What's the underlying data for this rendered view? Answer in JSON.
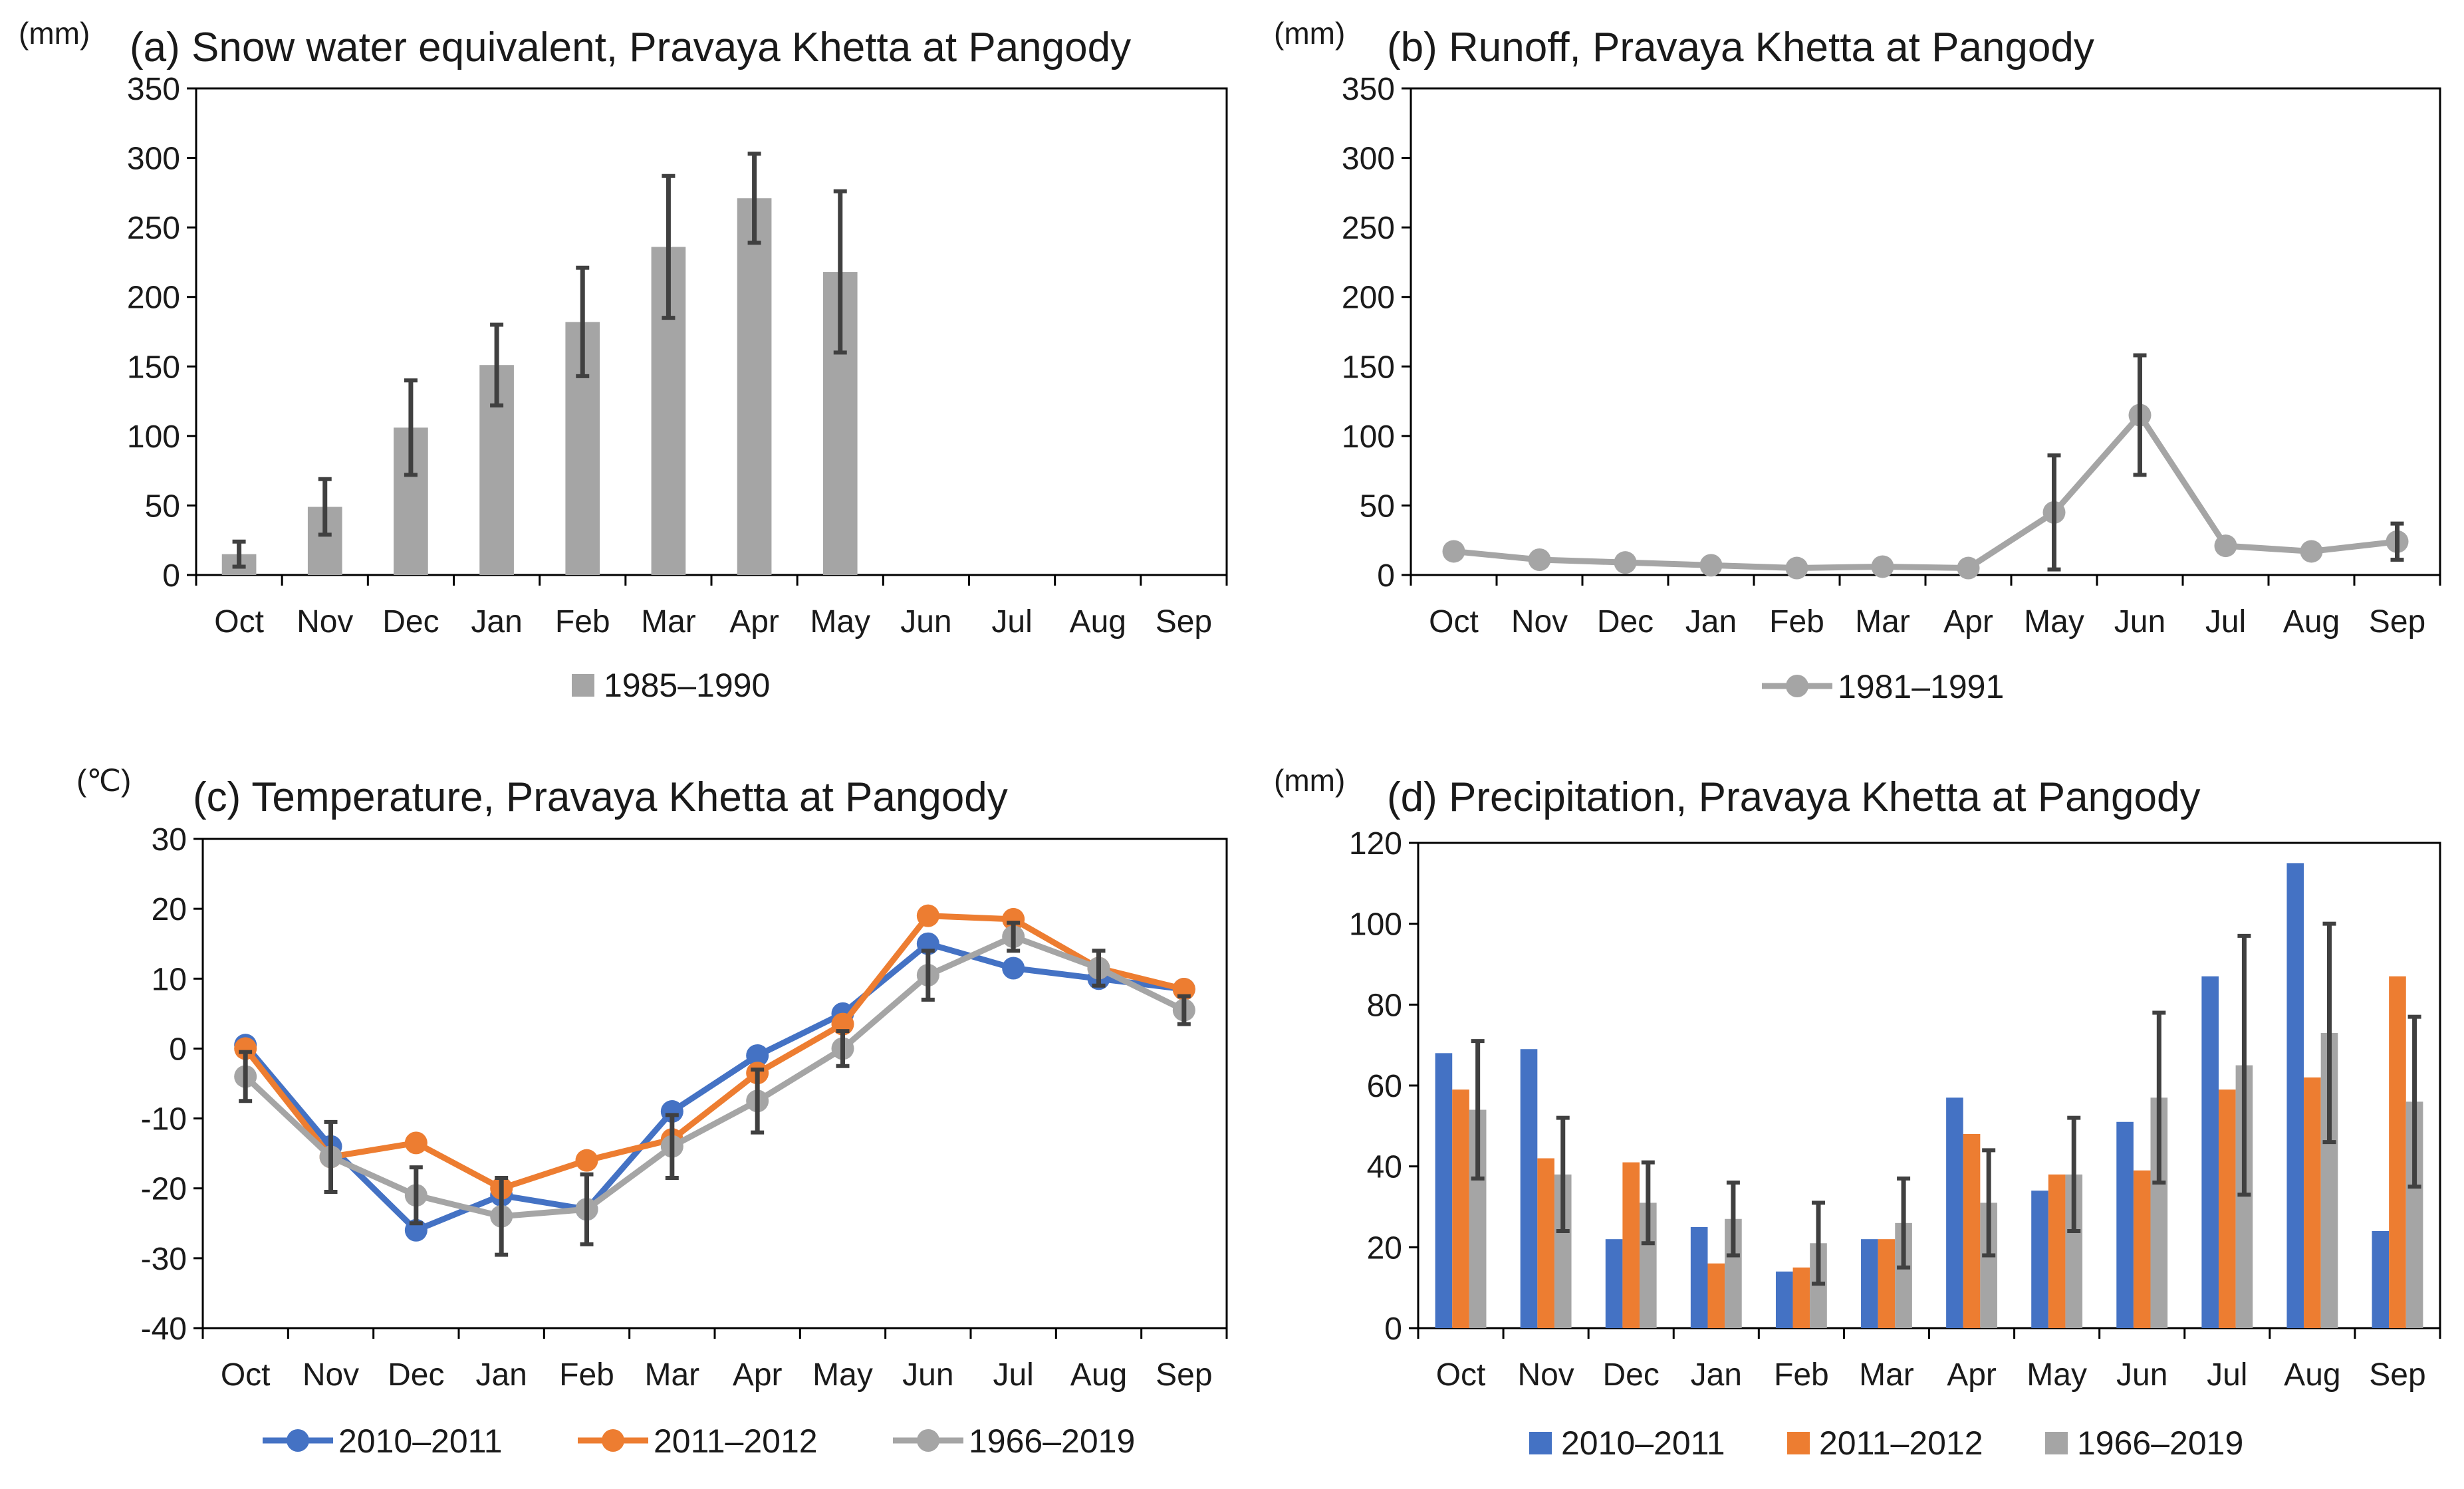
{
  "colors": {
    "blue": "#4472c4",
    "orange": "#ed7d31",
    "gray": "#a5a5a5",
    "errorbar": "#404040",
    "axis": "#000000"
  },
  "chart_data": [
    {
      "id": "a",
      "type": "bar",
      "title": "(a) Snow water equivalent, Pravaya Khetta at Pangody",
      "unit": "(mm)",
      "categories": [
        "Oct",
        "Nov",
        "Dec",
        "Jan",
        "Feb",
        "Mar",
        "Apr",
        "May",
        "Jun",
        "Jul",
        "Aug",
        "Sep"
      ],
      "ylim": [
        0,
        350
      ],
      "yticks": [
        0,
        50,
        100,
        150,
        200,
        250,
        300,
        350
      ],
      "series": [
        {
          "name": "1985–1990",
          "color": "#a5a5a5",
          "values": [
            15,
            49,
            106,
            151,
            182,
            236,
            271,
            218,
            null,
            null,
            null,
            null
          ],
          "error": [
            9,
            20,
            34,
            29,
            39,
            51,
            32,
            58,
            null,
            null,
            null,
            null
          ]
        }
      ],
      "legend_position": "bottom"
    },
    {
      "id": "b",
      "type": "line",
      "title": "(b) Runoff, Pravaya Khetta at Pangody",
      "unit": "(mm)",
      "categories": [
        "Oct",
        "Nov",
        "Dec",
        "Jan",
        "Feb",
        "Mar",
        "Apr",
        "May",
        "Jun",
        "Jul",
        "Aug",
        "Sep"
      ],
      "ylim": [
        0,
        350
      ],
      "yticks": [
        0,
        50,
        100,
        150,
        200,
        250,
        300,
        350
      ],
      "series": [
        {
          "name": "1981–1991",
          "color": "#a5a5a5",
          "values": [
            17,
            11,
            9,
            7,
            5,
            6,
            5,
            45,
            115,
            21,
            17,
            24
          ],
          "error": [
            0,
            0,
            0,
            0,
            0,
            0,
            0,
            41,
            43,
            0,
            0,
            13
          ]
        }
      ],
      "legend_position": "bottom"
    },
    {
      "id": "c",
      "type": "line",
      "title": "(c) Temperature, Pravaya Khetta at Pangody",
      "unit": "(℃)",
      "categories": [
        "Oct",
        "Nov",
        "Dec",
        "Jan",
        "Feb",
        "Mar",
        "Apr",
        "May",
        "Jun",
        "Jul",
        "Aug",
        "Sep"
      ],
      "ylim": [
        -40,
        30
      ],
      "yticks": [
        -40,
        -30,
        -20,
        -10,
        0,
        10,
        20,
        30
      ],
      "series": [
        {
          "name": "2010–2011",
          "color": "#4472c4",
          "values": [
            0.5,
            -14,
            -26,
            -21,
            -23,
            -9,
            -1,
            5,
            15,
            11.5,
            10,
            8.5
          ]
        },
        {
          "name": "2011–2012",
          "color": "#ed7d31",
          "values": [
            0,
            -15.5,
            -13.5,
            -20,
            -16,
            -13,
            -3.5,
            3.5,
            19,
            18.5,
            11.5,
            8.5
          ]
        },
        {
          "name": "1966–2019",
          "color": "#a5a5a5",
          "values": [
            -4,
            -15.5,
            -21,
            -24,
            -23,
            -14,
            -7.5,
            0,
            10.5,
            16,
            11.5,
            5.5
          ],
          "error": [
            3.5,
            5,
            4,
            5.5,
            5,
            4.5,
            4.5,
            2.5,
            3.5,
            2,
            2.5,
            2
          ]
        }
      ],
      "legend_position": "bottom"
    },
    {
      "id": "d",
      "type": "bar",
      "title": "(d) Precipitation, Pravaya Khetta at Pangody",
      "unit": "(mm)",
      "categories": [
        "Oct",
        "Nov",
        "Dec",
        "Jan",
        "Feb",
        "Mar",
        "Apr",
        "May",
        "Jun",
        "Jul",
        "Aug",
        "Sep"
      ],
      "ylim": [
        0,
        120
      ],
      "yticks": [
        0,
        20,
        40,
        60,
        80,
        100,
        120
      ],
      "series": [
        {
          "name": "2010–2011",
          "color": "#4472c4",
          "values": [
            68,
            69,
            22,
            25,
            14,
            22,
            57,
            34,
            51,
            87,
            115,
            24
          ]
        },
        {
          "name": "2011–2012",
          "color": "#ed7d31",
          "values": [
            59,
            42,
            41,
            16,
            15,
            22,
            48,
            38,
            39,
            59,
            62,
            87
          ]
        },
        {
          "name": "1966–2019",
          "color": "#a5a5a5",
          "values": [
            54,
            38,
            31,
            27,
            21,
            26,
            31,
            38,
            57,
            65,
            73,
            56
          ],
          "error": [
            17,
            14,
            10,
            9,
            10,
            11,
            13,
            14,
            21,
            32,
            27,
            21
          ]
        }
      ],
      "legend_position": "bottom"
    }
  ]
}
